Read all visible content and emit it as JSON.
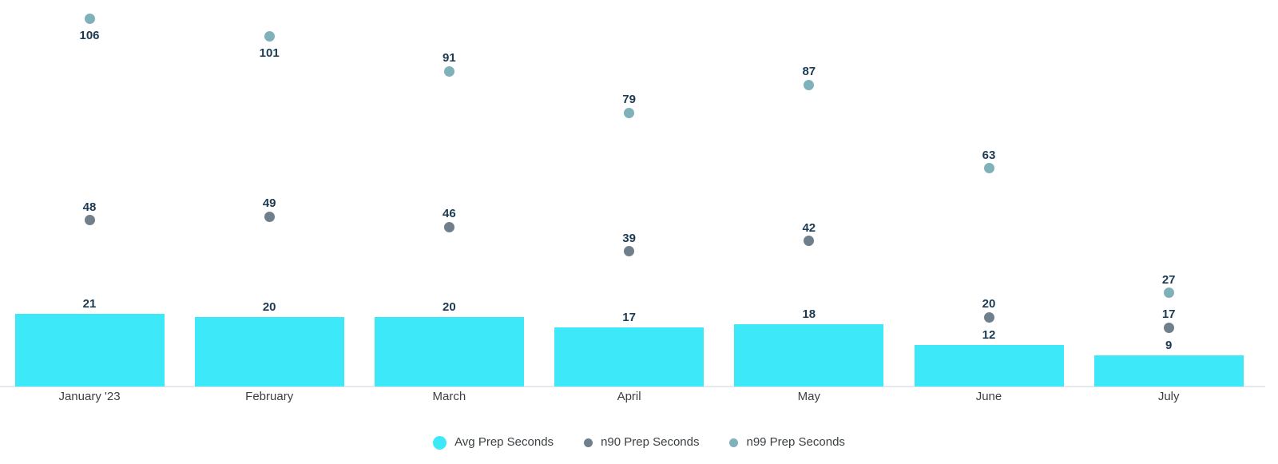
{
  "chart_data": {
    "type": "bar",
    "subtype": "combo-bar-scatter",
    "categories": [
      "January '23",
      "February",
      "March",
      "April",
      "May",
      "June",
      "July"
    ],
    "series": [
      {
        "name": "Avg Prep Seconds",
        "type": "bar",
        "color": "#3de8f9",
        "values": [
          21,
          20,
          20,
          17,
          18,
          12,
          9
        ]
      },
      {
        "name": "n90 Prep Seconds",
        "type": "scatter",
        "color": "#6f7f8b",
        "values": [
          48,
          49,
          46,
          39,
          42,
          20,
          17
        ]
      },
      {
        "name": "n99 Prep Seconds",
        "type": "scatter",
        "color": "#7fb1bb",
        "values": [
          106,
          101,
          91,
          79,
          87,
          63,
          27
        ]
      }
    ],
    "title": "",
    "xlabel": "",
    "ylabel": "",
    "ylim": [
      0,
      111
    ],
    "grid": false,
    "y_axis_shown": false,
    "legend_position": "bottom",
    "data_labels_shown": true,
    "n99_label_below": [
      true,
      true,
      false,
      false,
      false,
      false,
      false
    ],
    "colors": {
      "value_label": "#1c3a52",
      "axis_text": "#3c4043",
      "axis_line": "#e7e9f0",
      "background": "#ffffff"
    }
  }
}
